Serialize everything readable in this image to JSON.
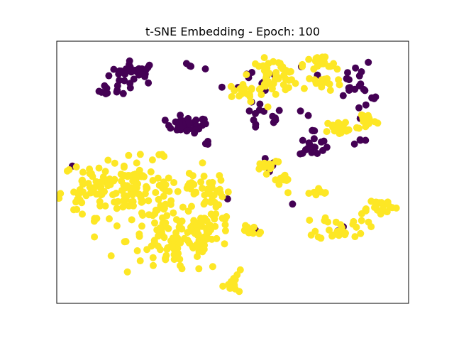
{
  "chart_data": {
    "type": "scatter",
    "title": "t-SNE Embedding -  Epoch: 100",
    "xlabel": "",
    "ylabel": "",
    "axes_ticks": false,
    "grid": false,
    "legend": "none",
    "xlim": [
      0,
      100
    ],
    "ylim": [
      0,
      100
    ],
    "colors": {
      "purple": "#440154",
      "yellow": "#fde725"
    },
    "point_radius": 5,
    "series": [
      {
        "color_key": "purple",
        "clusters": [
          {
            "cx": 22,
            "cy": 88,
            "sx": 3.5,
            "sy": 2.2,
            "n": 30
          },
          {
            "cx": 16,
            "cy": 81,
            "sx": 2.0,
            "sy": 1.3,
            "n": 10
          },
          {
            "cx": 37,
            "cy": 68,
            "sx": 3.0,
            "sy": 1.5,
            "n": 35
          },
          {
            "cx": 43,
            "cy": 61,
            "sx": 0.6,
            "sy": 0.6,
            "n": 3
          },
          {
            "cx": 38,
            "cy": 90,
            "sx": 2.0,
            "sy": 1.0,
            "n": 4
          },
          {
            "cx": 58,
            "cy": 71,
            "sx": 3.5,
            "sy": 3.0,
            "n": 14
          },
          {
            "cx": 61,
            "cy": 52,
            "sx": 1.5,
            "sy": 1.5,
            "n": 5
          },
          {
            "cx": 73,
            "cy": 60,
            "sx": 2.0,
            "sy": 2.0,
            "n": 16
          },
          {
            "cx": 72,
            "cy": 66,
            "sx": 1.0,
            "sy": 0.6,
            "n": 3
          },
          {
            "cx": 81,
            "cy": 86,
            "sx": 5.0,
            "sy": 4.0,
            "n": 16
          },
          {
            "cx": 88,
            "cy": 76,
            "sx": 2.0,
            "sy": 5.0,
            "n": 10
          },
          {
            "cx": 86,
            "cy": 62,
            "sx": 1.5,
            "sy": 1.0,
            "n": 4
          },
          {
            "cx": 60,
            "cy": 85,
            "sx": 6.0,
            "sy": 3.0,
            "n": 10
          },
          {
            "cx": 71,
            "cy": 73,
            "sx": 1.0,
            "sy": 1.0,
            "n": 2
          },
          {
            "cx": 67,
            "cy": 38,
            "sx": 0.5,
            "sy": 0.5,
            "n": 1
          },
          {
            "cx": 5,
            "cy": 53,
            "sx": 0.5,
            "sy": 0.5,
            "n": 1
          },
          {
            "cx": 56,
            "cy": 28,
            "sx": 1.0,
            "sy": 0.8,
            "n": 2
          },
          {
            "cx": 48,
            "cy": 40,
            "sx": 0.5,
            "sy": 0.5,
            "n": 1
          },
          {
            "cx": 80,
            "cy": 28,
            "sx": 1.0,
            "sy": 0.8,
            "n": 3
          }
        ]
      },
      {
        "color_key": "yellow",
        "clusters": [
          {
            "cx": 21,
            "cy": 44,
            "sx": 10.0,
            "sy": 5.5,
            "n": 150
          },
          {
            "cx": 34,
            "cy": 24,
            "sx": 7.0,
            "sy": 6.5,
            "n": 110
          },
          {
            "cx": 44,
            "cy": 27,
            "sx": 4.0,
            "sy": 4.0,
            "n": 30
          },
          {
            "cx": 44,
            "cy": 43,
            "sx": 2.0,
            "sy": 3.0,
            "n": 25
          },
          {
            "cx": 51,
            "cy": 8,
            "sx": 2.0,
            "sy": 2.0,
            "n": 12
          },
          {
            "cx": 9,
            "cy": 44,
            "sx": 2.5,
            "sy": 4.0,
            "n": 18
          },
          {
            "cx": 62,
            "cy": 87,
            "sx": 3.5,
            "sy": 3.0,
            "n": 45
          },
          {
            "cx": 53,
            "cy": 81,
            "sx": 3.5,
            "sy": 1.8,
            "n": 20
          },
          {
            "cx": 75,
            "cy": 91,
            "sx": 2.5,
            "sy": 1.8,
            "n": 20
          },
          {
            "cx": 76,
            "cy": 84,
            "sx": 2.5,
            "sy": 1.5,
            "n": 20
          },
          {
            "cx": 81,
            "cy": 67,
            "sx": 2.5,
            "sy": 1.5,
            "n": 20
          },
          {
            "cx": 88,
            "cy": 70,
            "sx": 1.5,
            "sy": 2.0,
            "n": 15
          },
          {
            "cx": 60,
            "cy": 53,
            "sx": 2.0,
            "sy": 1.3,
            "n": 14
          },
          {
            "cx": 65,
            "cy": 47,
            "sx": 1.5,
            "sy": 1.0,
            "n": 10
          },
          {
            "cx": 73,
            "cy": 42,
            "sx": 2.5,
            "sy": 1.0,
            "n": 10
          },
          {
            "cx": 81,
            "cy": 29,
            "sx": 3.5,
            "sy": 2.5,
            "n": 30
          },
          {
            "cx": 91,
            "cy": 37,
            "sx": 3.0,
            "sy": 1.5,
            "n": 25
          },
          {
            "cx": 55,
            "cy": 28,
            "sx": 2.5,
            "sy": 1.5,
            "n": 10
          }
        ]
      }
    ]
  }
}
